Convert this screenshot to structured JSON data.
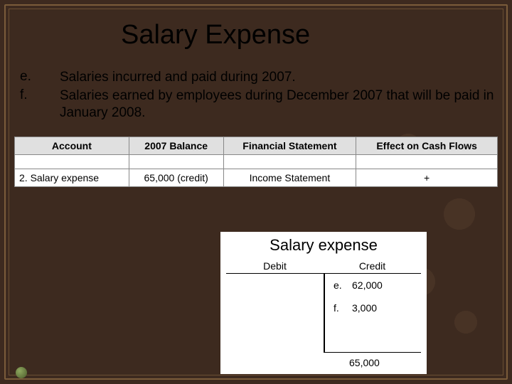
{
  "title": "Salary Expense",
  "list": [
    {
      "label": "e.",
      "text": "Salaries incurred and paid during 2007."
    },
    {
      "label": "f.",
      "text": "Salaries earned by employees during December 2007 that will be paid in January 2008."
    }
  ],
  "summary_table": {
    "type": "table",
    "background_color": "#ffffff",
    "header_bg": "#e0e0e0",
    "border_color": "#888888",
    "font_size": 14,
    "columns": [
      "Account",
      "2007 Balance",
      "Financial Statement",
      "Effect on Cash Flows"
    ],
    "blank_row": [
      "",
      "",
      "",
      ""
    ],
    "rows": [
      [
        "2. Salary expense",
        "65,000 (credit)",
        "Income Statement",
        "+"
      ]
    ]
  },
  "t_account": {
    "type": "t-account",
    "title": "Salary expense",
    "title_fontsize": 22,
    "debit_label": "Debit",
    "credit_label": "Credit",
    "font_size": 14,
    "line_color": "#000000",
    "background_color": "#ffffff",
    "entries": [
      {
        "side": "credit",
        "label": "e.",
        "amount": "62,000"
      },
      {
        "side": "credit",
        "label": "f.",
        "amount": "3,000"
      }
    ],
    "total": {
      "side": "credit",
      "amount": "65,000"
    }
  },
  "colors": {
    "slide_bg": "#3d2a1f",
    "frame_outer": "#7a5c3a",
    "frame_inner": "#6b4f33",
    "title_color": "#000000",
    "text_color": "#000000"
  }
}
